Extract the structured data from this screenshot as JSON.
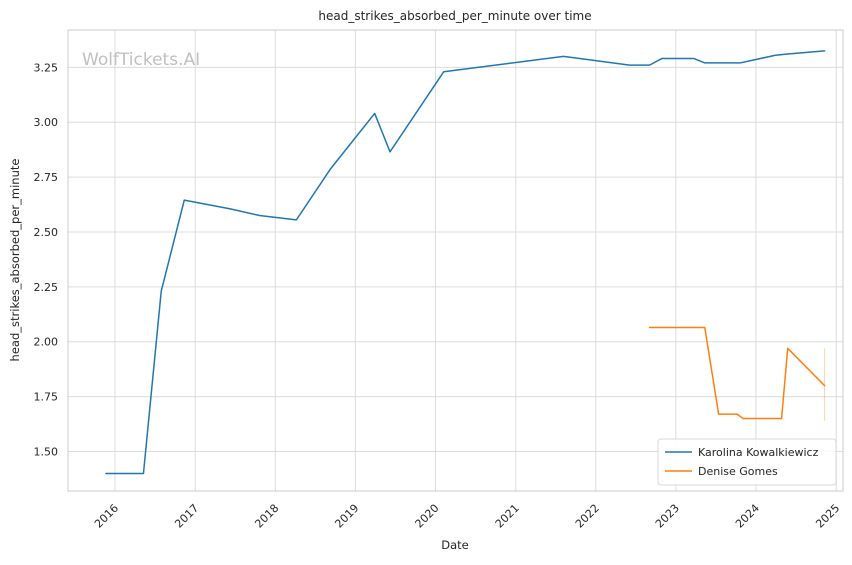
{
  "chart_data": {
    "type": "line",
    "title": "head_strikes_absorbed_per_minute over time",
    "xlabel": "Date",
    "ylabel": "head_strikes_absorbed_per_minute",
    "watermark": "WolfTickets.AI",
    "x_type": "date",
    "xlim": [
      "2015-06-01",
      "2025-02-01"
    ],
    "ylim": [
      1.32,
      3.42
    ],
    "x_ticks": [
      "2016",
      "2017",
      "2018",
      "2019",
      "2020",
      "2021",
      "2022",
      "2023",
      "2024",
      "2025"
    ],
    "y_ticks": [
      1.5,
      1.75,
      2.0,
      2.25,
      2.5,
      2.75,
      3.0,
      3.25
    ],
    "y_tick_labels": [
      "1.50",
      "1.75",
      "2.00",
      "2.25",
      "2.50",
      "2.75",
      "3.00",
      "3.25"
    ],
    "grid": true,
    "legend_position": "lower-right",
    "series": [
      {
        "name": "Karolina Kowalkiewicz",
        "color": "#1f77b4",
        "points": [
          [
            "2015-11-21",
            1.4
          ],
          [
            "2016-05-10",
            1.4
          ],
          [
            "2016-07-30",
            2.23
          ],
          [
            "2016-11-12",
            2.645
          ],
          [
            "2017-06-10",
            2.605
          ],
          [
            "2017-10-21",
            2.575
          ],
          [
            "2018-04-07",
            2.555
          ],
          [
            "2018-09-08",
            2.785
          ],
          [
            "2019-03-30",
            3.04
          ],
          [
            "2019-06-08",
            2.865
          ],
          [
            "2020-02-08",
            3.23
          ],
          [
            "2021-08-07",
            3.3
          ],
          [
            "2022-06-04",
            3.26
          ],
          [
            "2022-09-03",
            3.26
          ],
          [
            "2022-10-29",
            3.29
          ],
          [
            "2023-03-25",
            3.29
          ],
          [
            "2023-05-13",
            3.27
          ],
          [
            "2023-10-21",
            3.27
          ],
          [
            "2024-03-30",
            3.305
          ],
          [
            "2024-05-18",
            3.31
          ],
          [
            "2024-11-09",
            3.325
          ]
        ]
      },
      {
        "name": "Denise Gomes",
        "color": "#ff7f0e",
        "points": [
          [
            "2022-09-03",
            2.065
          ],
          [
            "2023-05-13",
            2.065
          ],
          [
            "2023-07-15",
            1.67
          ],
          [
            "2023-10-07",
            1.67
          ],
          [
            "2023-11-04",
            1.65
          ],
          [
            "2024-04-27",
            1.65
          ],
          [
            "2024-05-25",
            1.97
          ],
          [
            "2024-11-09",
            1.8
          ]
        ],
        "range_bar": {
          "x": "2024-11-09",
          "y_low": 1.64,
          "y_high": 1.97
        }
      }
    ]
  }
}
